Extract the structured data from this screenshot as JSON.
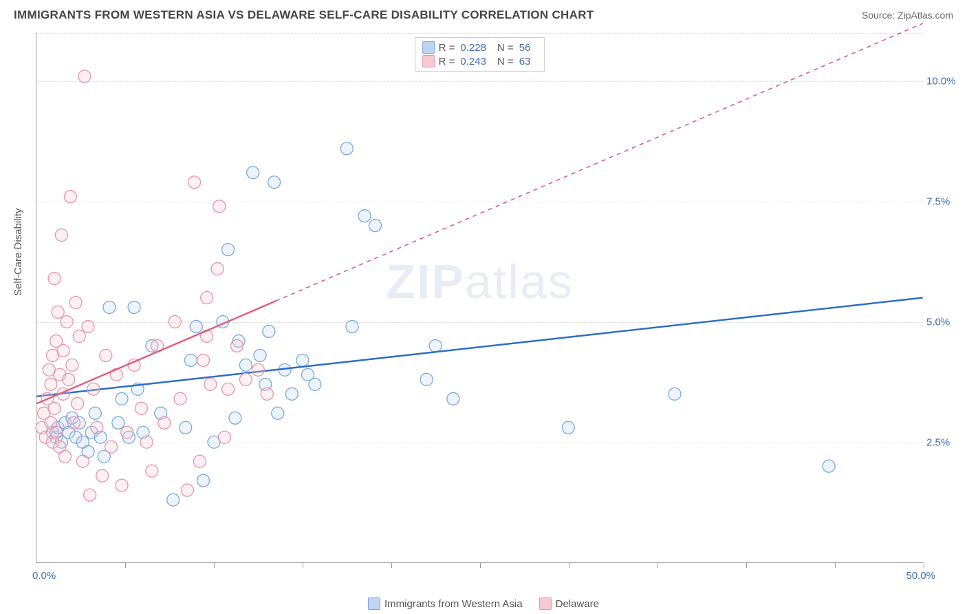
{
  "header": {
    "title": "IMMIGRANTS FROM WESTERN ASIA VS DELAWARE SELF-CARE DISABILITY CORRELATION CHART",
    "source_prefix": "Source: ",
    "source_name": "ZipAtlas.com"
  },
  "chart": {
    "type": "scatter",
    "background_color": "#ffffff",
    "grid_color": "#dddddd",
    "axis_color": "#999999",
    "xlim": [
      0,
      50
    ],
    "ylim": [
      0,
      11
    ],
    "x_ticks": [
      0,
      5,
      10,
      15,
      20,
      25,
      30,
      35,
      40,
      45,
      50
    ],
    "y_grid": [
      2.5,
      5.0,
      7.5,
      10.0
    ],
    "y_tick_labels": [
      "2.5%",
      "5.0%",
      "7.5%",
      "10.0%"
    ],
    "x_min_label": "0.0%",
    "x_max_label": "50.0%",
    "ylabel": "Self-Care Disability",
    "marker_radius": 9,
    "marker_stroke_width": 1.3,
    "marker_fill_opacity": 0.28,
    "line_width": 2.4,
    "tick_label_color": "#3b6db5",
    "axis_label_color": "#555555",
    "tick_label_fontsize": 15,
    "axis_label_fontsize": 15
  },
  "legend_top": {
    "r_label": "R =",
    "n_label": "N =",
    "rows": [
      {
        "swatch_fill": "#bfd4ef",
        "swatch_stroke": "#7aa6dd",
        "r": "0.228",
        "n": "56"
      },
      {
        "swatch_fill": "#f8c8d3",
        "swatch_stroke": "#e693a8",
        "r": "0.243",
        "n": "63"
      }
    ]
  },
  "legend_bottom": {
    "items": [
      {
        "swatch_fill": "#bfd4ef",
        "swatch_stroke": "#7aa6dd",
        "label": "Immigrants from Western Asia"
      },
      {
        "swatch_fill": "#f8c8d3",
        "swatch_stroke": "#e693a8",
        "label": "Delaware"
      }
    ]
  },
  "watermark": {
    "bold": "ZIP",
    "light": "atlas"
  },
  "series": [
    {
      "name": "Immigrants from Western Asia",
      "fill": "#bfd4ef",
      "stroke": "#7aa6dd",
      "trend": {
        "x1": 0,
        "y1": 3.45,
        "x2": 50,
        "y2": 5.5,
        "dashed_after_x": null,
        "color": "#2d6bc4"
      },
      "points": [
        [
          0.9,
          2.7
        ],
        [
          1.1,
          2.6
        ],
        [
          1.2,
          2.8
        ],
        [
          1.4,
          2.5
        ],
        [
          1.6,
          2.9
        ],
        [
          1.8,
          2.7
        ],
        [
          2.0,
          3.0
        ],
        [
          2.2,
          2.6
        ],
        [
          2.4,
          2.9
        ],
        [
          2.6,
          2.5
        ],
        [
          2.9,
          2.3
        ],
        [
          3.1,
          2.7
        ],
        [
          3.3,
          3.1
        ],
        [
          3.6,
          2.6
        ],
        [
          3.8,
          2.2
        ],
        [
          4.1,
          5.3
        ],
        [
          4.6,
          2.9
        ],
        [
          4.8,
          3.4
        ],
        [
          5.2,
          2.6
        ],
        [
          5.5,
          5.3
        ],
        [
          5.7,
          3.6
        ],
        [
          6.0,
          2.7
        ],
        [
          6.5,
          4.5
        ],
        [
          7.0,
          3.1
        ],
        [
          7.7,
          1.3
        ],
        [
          8.4,
          2.8
        ],
        [
          8.7,
          4.2
        ],
        [
          9.0,
          4.9
        ],
        [
          9.4,
          1.7
        ],
        [
          10.0,
          2.5
        ],
        [
          10.5,
          5.0
        ],
        [
          10.8,
          6.5
        ],
        [
          11.2,
          3.0
        ],
        [
          11.4,
          4.6
        ],
        [
          11.8,
          4.1
        ],
        [
          12.2,
          8.1
        ],
        [
          12.6,
          4.3
        ],
        [
          12.9,
          3.7
        ],
        [
          13.1,
          4.8
        ],
        [
          13.4,
          7.9
        ],
        [
          13.6,
          3.1
        ],
        [
          14.0,
          4.0
        ],
        [
          14.4,
          3.5
        ],
        [
          15.0,
          4.2
        ],
        [
          15.3,
          3.9
        ],
        [
          15.7,
          3.7
        ],
        [
          17.5,
          8.6
        ],
        [
          17.8,
          4.9
        ],
        [
          18.5,
          7.2
        ],
        [
          19.1,
          7.0
        ],
        [
          22.0,
          3.8
        ],
        [
          22.5,
          4.5
        ],
        [
          23.5,
          3.4
        ],
        [
          30.0,
          2.8
        ],
        [
          36.0,
          3.5
        ],
        [
          44.7,
          2.0
        ]
      ]
    },
    {
      "name": "Delaware",
      "fill": "#f8c8d3",
      "stroke": "#e693a8",
      "trend": {
        "x1": 0,
        "y1": 3.3,
        "x2": 50,
        "y2": 11.2,
        "dashed_after_x": 13.5,
        "color": "#e05a7a"
      },
      "points": [
        [
          0.3,
          2.8
        ],
        [
          0.4,
          3.1
        ],
        [
          0.5,
          2.6
        ],
        [
          0.6,
          3.4
        ],
        [
          0.7,
          4.0
        ],
        [
          0.8,
          2.9
        ],
        [
          0.8,
          3.7
        ],
        [
          0.9,
          4.3
        ],
        [
          0.9,
          2.5
        ],
        [
          1.0,
          5.9
        ],
        [
          1.0,
          3.2
        ],
        [
          1.1,
          4.6
        ],
        [
          1.1,
          2.7
        ],
        [
          1.2,
          5.2
        ],
        [
          1.3,
          3.9
        ],
        [
          1.3,
          2.4
        ],
        [
          1.4,
          6.8
        ],
        [
          1.5,
          3.5
        ],
        [
          1.5,
          4.4
        ],
        [
          1.6,
          2.2
        ],
        [
          1.7,
          5.0
        ],
        [
          1.8,
          3.8
        ],
        [
          1.9,
          7.6
        ],
        [
          2.0,
          4.1
        ],
        [
          2.1,
          2.9
        ],
        [
          2.2,
          5.4
        ],
        [
          2.3,
          3.3
        ],
        [
          2.4,
          4.7
        ],
        [
          2.6,
          2.1
        ],
        [
          2.7,
          10.1
        ],
        [
          2.9,
          4.9
        ],
        [
          3.0,
          1.4
        ],
        [
          3.2,
          3.6
        ],
        [
          3.4,
          2.8
        ],
        [
          3.7,
          1.8
        ],
        [
          3.9,
          4.3
        ],
        [
          4.2,
          2.4
        ],
        [
          4.5,
          3.9
        ],
        [
          4.8,
          1.6
        ],
        [
          5.1,
          2.7
        ],
        [
          5.5,
          4.1
        ],
        [
          5.9,
          3.2
        ],
        [
          6.2,
          2.5
        ],
        [
          6.5,
          1.9
        ],
        [
          6.8,
          4.5
        ],
        [
          7.2,
          2.9
        ],
        [
          7.8,
          5.0
        ],
        [
          8.1,
          3.4
        ],
        [
          8.5,
          1.5
        ],
        [
          8.9,
          7.9
        ],
        [
          9.2,
          2.1
        ],
        [
          9.4,
          4.2
        ],
        [
          9.6,
          4.7
        ],
        [
          9.6,
          5.5
        ],
        [
          9.8,
          3.7
        ],
        [
          10.2,
          6.1
        ],
        [
          10.3,
          7.4
        ],
        [
          10.6,
          2.6
        ],
        [
          10.8,
          3.6
        ],
        [
          11.3,
          4.5
        ],
        [
          11.8,
          3.8
        ],
        [
          12.5,
          4.0
        ],
        [
          13.0,
          3.5
        ]
      ]
    }
  ]
}
